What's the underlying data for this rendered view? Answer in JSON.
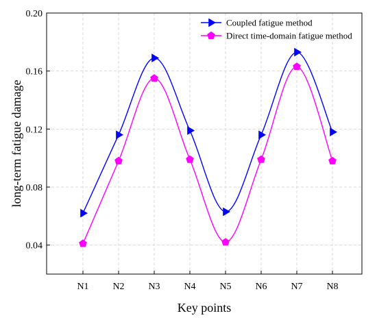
{
  "chart_data": {
    "type": "line",
    "xlabel": "Key points",
    "ylabel": "long-term fatigue damage",
    "categories": [
      "N1",
      "N2",
      "N3",
      "N4",
      "N5",
      "N6",
      "N7",
      "N8"
    ],
    "ylim": [
      0.02,
      0.2
    ],
    "yticks": [
      "0.04",
      "0.08",
      "0.12",
      "0.16",
      "0.20"
    ],
    "grid": true,
    "legend_position": "top-right",
    "series": [
      {
        "name": "Coupled fatigue method",
        "color": "#0000ff",
        "marker": "right-triangle",
        "values": [
          0.062,
          0.116,
          0.169,
          0.119,
          0.063,
          0.116,
          0.173,
          0.118
        ]
      },
      {
        "name": "Direct time-domain fatigue method",
        "color": "#ff00ff",
        "marker": "pentagon",
        "values": [
          0.041,
          0.098,
          0.155,
          0.099,
          0.042,
          0.099,
          0.163,
          0.098
        ]
      }
    ]
  }
}
